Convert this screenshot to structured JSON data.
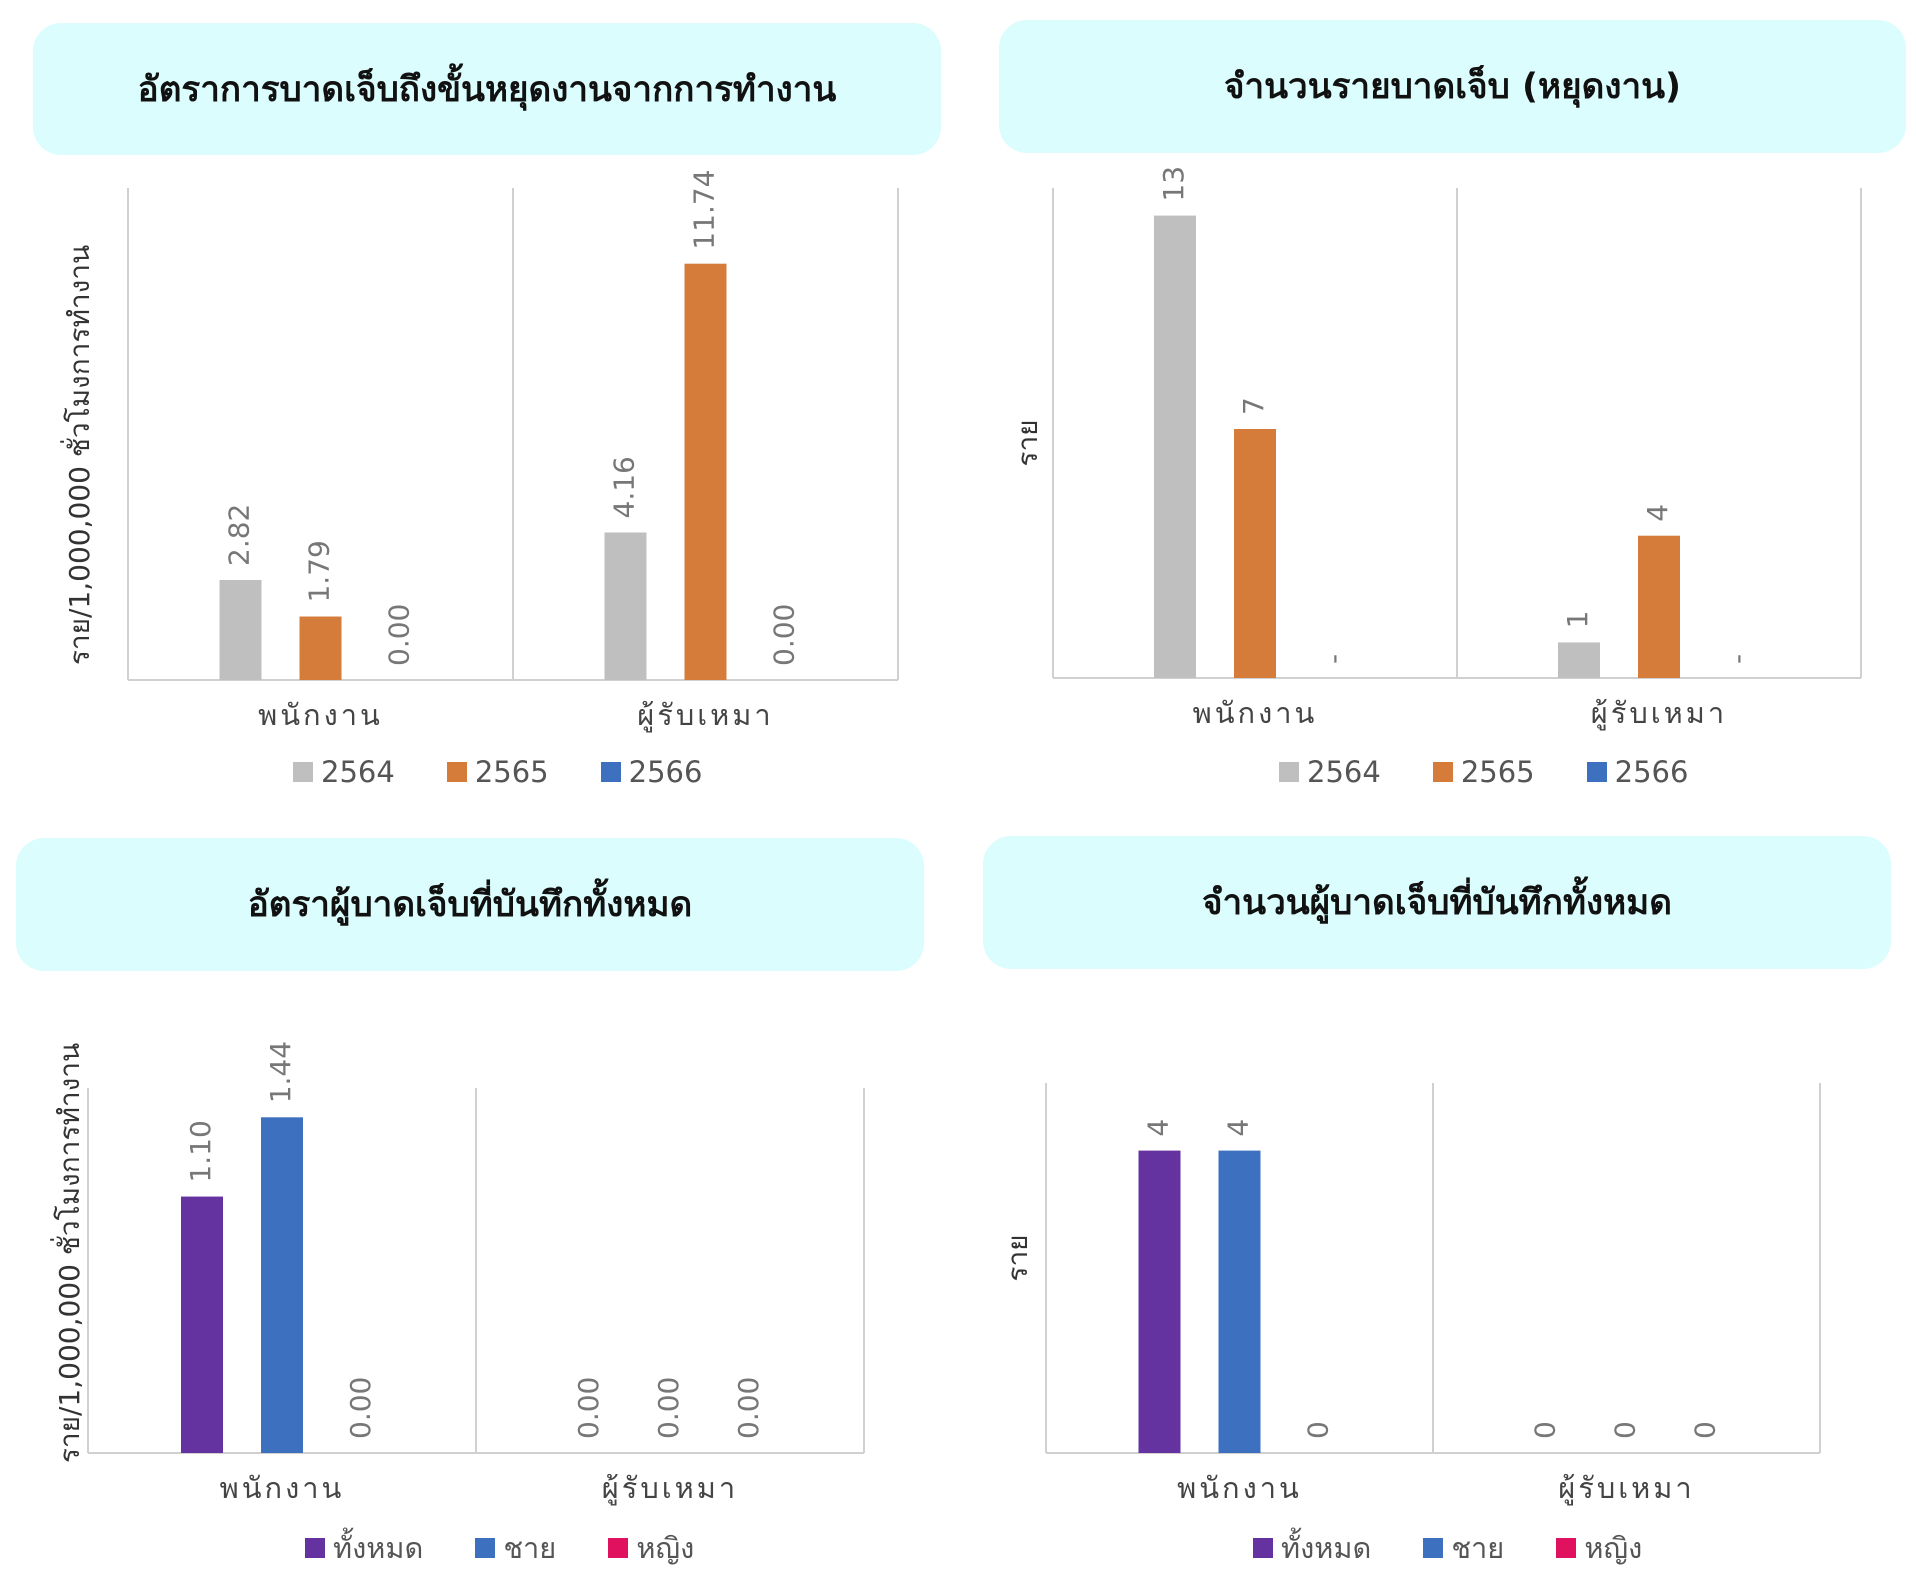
{
  "chart_data": [
    {
      "type": "bar",
      "title": "อัตราการบาดเจ็บถึงขั้นหยุดงานจากการทำงาน",
      "ylabel": "ราย/1,000,000 ชั่วโมงการทำงาน",
      "categories": [
        "พนักงาน",
        "ผู้รับเหมา"
      ],
      "series": [
        {
          "name": "2564",
          "values": [
            2.82,
            4.16
          ],
          "labels": [
            "2.82",
            "4.16"
          ]
        },
        {
          "name": "2565",
          "values": [
            1.79,
            11.74
          ],
          "labels": [
            "1.79",
            "11.74"
          ]
        },
        {
          "name": "2566",
          "values": [
            0,
            0
          ],
          "labels": [
            "0.00",
            "0.00"
          ]
        }
      ],
      "ylim": [
        0,
        14.1
      ],
      "grid": false,
      "legend": "bottom"
    },
    {
      "type": "bar",
      "title": "จำนวนรายบาดเจ็บ (หยุดงาน)",
      "ylabel": "ราย",
      "categories": [
        "พนักงาน",
        "ผู้รับเหมา"
      ],
      "series": [
        {
          "name": "2564",
          "values": [
            13,
            1
          ],
          "labels": [
            "13",
            "1"
          ]
        },
        {
          "name": "2565",
          "values": [
            7,
            4
          ],
          "labels": [
            "7",
            "4"
          ]
        },
        {
          "name": "2566",
          "values": [
            0,
            0
          ],
          "labels": [
            "-",
            "-"
          ]
        }
      ],
      "ylim": [
        0,
        14
      ],
      "grid": false,
      "legend": "bottom"
    },
    {
      "type": "bar",
      "title": "อัตราผู้บาดเจ็บที่บันทึกทั้งหมด",
      "ylabel": "ราย/1,000,000 ชั่วโมงการทำงาน",
      "categories": [
        "พนักงาน",
        "ผู้รับเหมา"
      ],
      "series": [
        {
          "name": "ทั้งหมด",
          "values": [
            1.1,
            0
          ],
          "labels": [
            "1.10",
            "0.00"
          ]
        },
        {
          "name": "ชาย",
          "values": [
            1.44,
            0
          ],
          "labels": [
            "1.44",
            "0.00"
          ]
        },
        {
          "name": "หญิง",
          "values": [
            0,
            0
          ],
          "labels": [
            "0.00",
            "0.00"
          ]
        }
      ],
      "ylim": [
        0,
        1.6
      ],
      "grid": false,
      "legend": "bottom"
    },
    {
      "type": "bar",
      "title": "จำนวนผู้บาดเจ็บที่บันทึกทั้งหมด",
      "ylabel": "ราย",
      "categories": [
        "พนักงาน",
        "ผู้รับเหมา"
      ],
      "series": [
        {
          "name": "ทั้งหมด",
          "values": [
            4,
            0
          ],
          "labels": [
            "4",
            "0"
          ]
        },
        {
          "name": "ชาย",
          "values": [
            4,
            0
          ],
          "labels": [
            "4",
            "0"
          ]
        },
        {
          "name": "หญิง",
          "values": [
            0,
            0
          ],
          "labels": [
            "0",
            "0"
          ]
        }
      ],
      "ylim": [
        0,
        5
      ],
      "grid": false,
      "legend": "bottom"
    }
  ],
  "colors": {
    "year_2564": "#bfbfbf",
    "year_2565": "#d57c3a",
    "year_2566": "#3d70bf",
    "total": "#6533a0",
    "male": "#3d70bf",
    "female": "#e0115f",
    "banner_bg": "#dbfdfd",
    "axis": "#d0d0d0",
    "label_text": "#777777"
  }
}
